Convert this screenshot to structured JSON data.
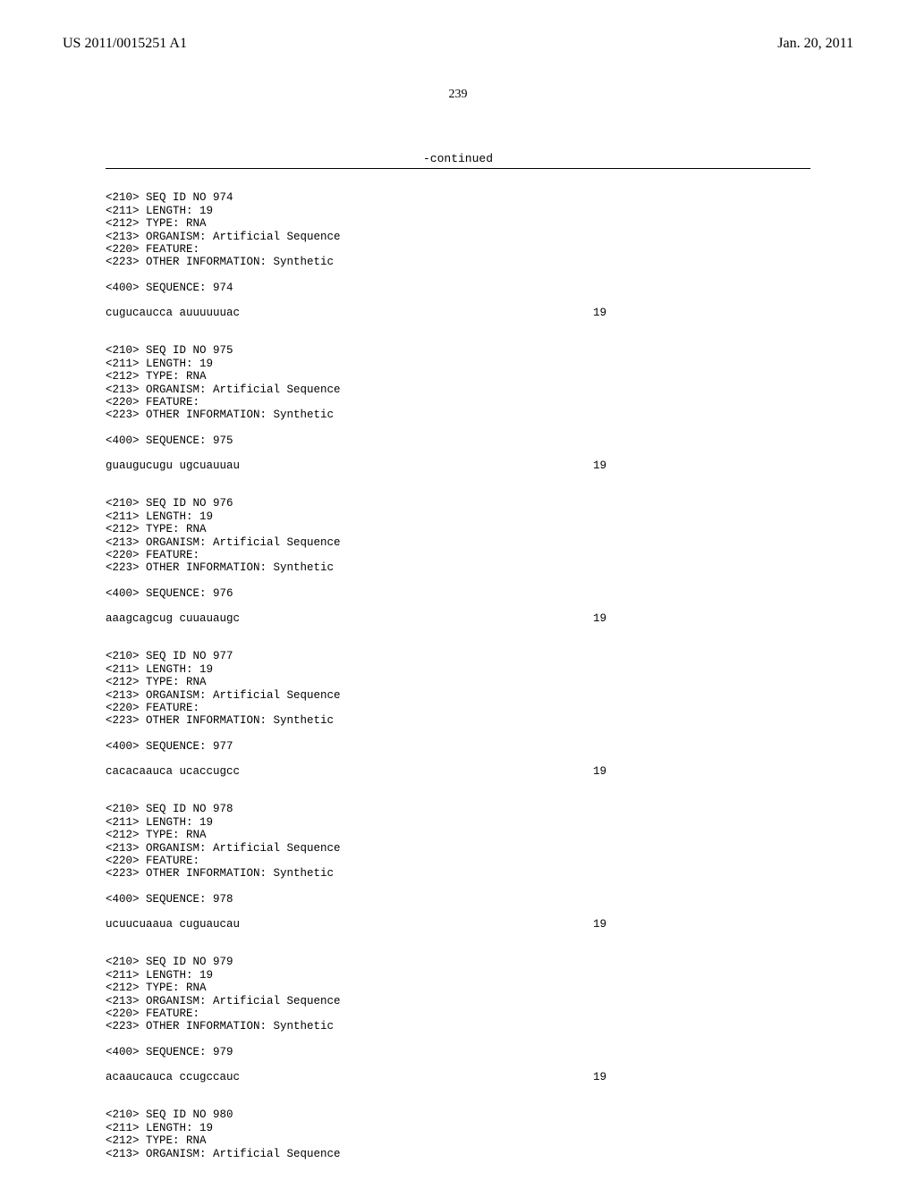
{
  "header": {
    "publication_number": "US 2011/0015251 A1",
    "publication_date": "Jan. 20, 2011"
  },
  "page_number": "239",
  "continued_label": "-continued",
  "entries": [
    {
      "seq_id": "<210> SEQ ID NO 974",
      "length": "<211> LENGTH: 19",
      "type": "<212> TYPE: RNA",
      "organism": "<213> ORGANISM: Artificial Sequence",
      "feature": "<220> FEATURE:",
      "other": "<223> OTHER INFORMATION: Synthetic",
      "seq_header": "<400> SEQUENCE: 974",
      "residue": "cugucaucca auuuuuuac",
      "count": "19"
    },
    {
      "seq_id": "<210> SEQ ID NO 975",
      "length": "<211> LENGTH: 19",
      "type": "<212> TYPE: RNA",
      "organism": "<213> ORGANISM: Artificial Sequence",
      "feature": "<220> FEATURE:",
      "other": "<223> OTHER INFORMATION: Synthetic",
      "seq_header": "<400> SEQUENCE: 975",
      "residue": "guaugucugu ugcuauuau",
      "count": "19"
    },
    {
      "seq_id": "<210> SEQ ID NO 976",
      "length": "<211> LENGTH: 19",
      "type": "<212> TYPE: RNA",
      "organism": "<213> ORGANISM: Artificial Sequence",
      "feature": "<220> FEATURE:",
      "other": "<223> OTHER INFORMATION: Synthetic",
      "seq_header": "<400> SEQUENCE: 976",
      "residue": "aaagcagcug cuuauaugc",
      "count": "19"
    },
    {
      "seq_id": "<210> SEQ ID NO 977",
      "length": "<211> LENGTH: 19",
      "type": "<212> TYPE: RNA",
      "organism": "<213> ORGANISM: Artificial Sequence",
      "feature": "<220> FEATURE:",
      "other": "<223> OTHER INFORMATION: Synthetic",
      "seq_header": "<400> SEQUENCE: 977",
      "residue": "cacacaauca ucaccugcc",
      "count": "19"
    },
    {
      "seq_id": "<210> SEQ ID NO 978",
      "length": "<211> LENGTH: 19",
      "type": "<212> TYPE: RNA",
      "organism": "<213> ORGANISM: Artificial Sequence",
      "feature": "<220> FEATURE:",
      "other": "<223> OTHER INFORMATION: Synthetic",
      "seq_header": "<400> SEQUENCE: 978",
      "residue": "ucuucuaaua cuguaucau",
      "count": "19"
    },
    {
      "seq_id": "<210> SEQ ID NO 979",
      "length": "<211> LENGTH: 19",
      "type": "<212> TYPE: RNA",
      "organism": "<213> ORGANISM: Artificial Sequence",
      "feature": "<220> FEATURE:",
      "other": "<223> OTHER INFORMATION: Synthetic",
      "seq_header": "<400> SEQUENCE: 979",
      "residue": "acaaucauca ccugccauc",
      "count": "19"
    }
  ],
  "partial_entry": {
    "seq_id": "<210> SEQ ID NO 980",
    "length": "<211> LENGTH: 19",
    "type": "<212> TYPE: RNA",
    "organism": "<213> ORGANISM: Artificial Sequence"
  }
}
